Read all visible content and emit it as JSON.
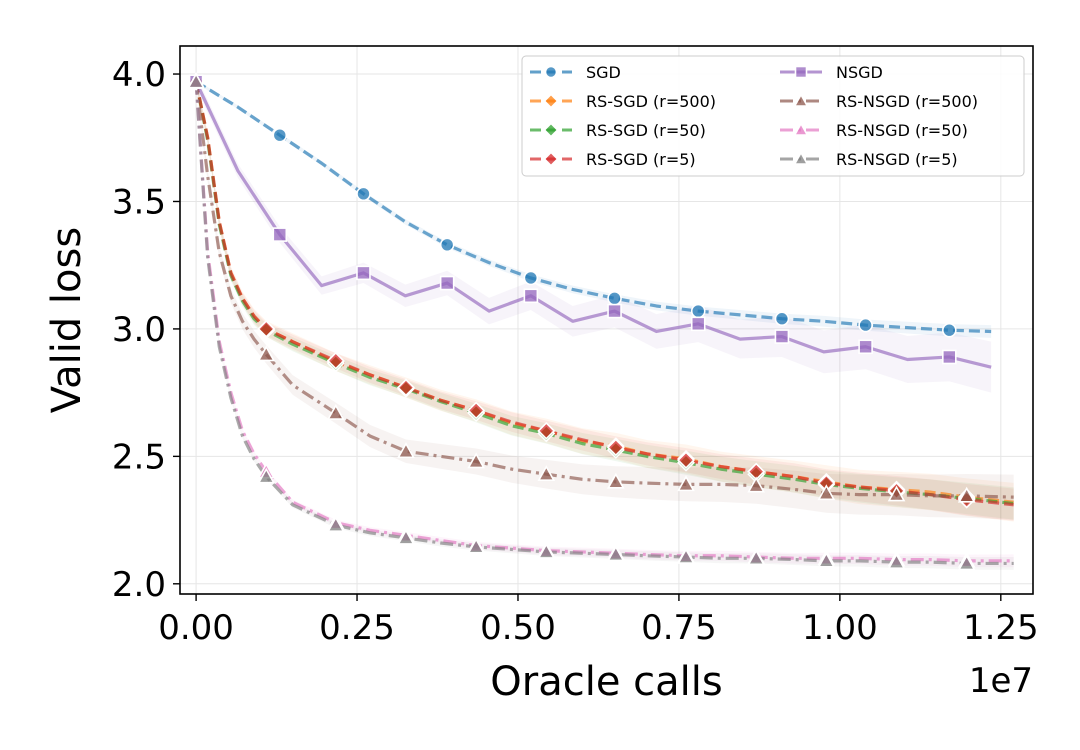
{
  "chart_data": {
    "type": "line",
    "xlabel": "Oracle calls",
    "ylabel": "Valid loss",
    "x_offset_label": "1e7",
    "xlim": [
      -0.025,
      1.3
    ],
    "ylim": [
      1.96,
      4.11
    ],
    "xticks": [
      0.0,
      0.25,
      0.5,
      0.75,
      1.0,
      1.25
    ],
    "xtick_labels": [
      "0.00",
      "0.25",
      "0.50",
      "0.75",
      "1.00",
      "1.25"
    ],
    "yticks": [
      2.0,
      2.5,
      3.0,
      3.5,
      4.0
    ],
    "ytick_labels": [
      "2.0",
      "2.5",
      "3.0",
      "3.5",
      "4.0"
    ],
    "grid": true,
    "legend_location": "upper right",
    "series": [
      {
        "name": "SGD",
        "color": "#1f77b4",
        "marker": "circle",
        "linestyle": "dashed",
        "band": 0.02,
        "x": [
          0.0,
          0.065,
          0.13,
          0.195,
          0.26,
          0.325,
          0.39,
          0.455,
          0.52,
          0.585,
          0.65,
          0.715,
          0.78,
          0.845,
          0.91,
          0.975,
          1.04,
          1.105,
          1.17,
          1.235
        ],
        "y": [
          3.97,
          3.87,
          3.76,
          3.65,
          3.53,
          3.42,
          3.33,
          3.26,
          3.2,
          3.155,
          3.12,
          3.09,
          3.07,
          3.055,
          3.04,
          3.03,
          3.015,
          3.005,
          2.995,
          2.99
        ],
        "marker_indices": [
          0,
          2,
          4,
          6,
          8,
          10,
          12,
          14,
          16,
          18
        ]
      },
      {
        "name": "RS-SGD (r=500)",
        "color": "#ff7f0e",
        "marker": "diamond",
        "linestyle": "dashed",
        "band": 0.06,
        "x": [
          0.0,
          0.018,
          0.036,
          0.054,
          0.072,
          0.09,
          0.109,
          0.15,
          0.217,
          0.27,
          0.326,
          0.38,
          0.435,
          0.49,
          0.544,
          0.6,
          0.652,
          0.7,
          0.761,
          0.815,
          0.87,
          0.93,
          0.979,
          1.03,
          1.088,
          1.14,
          1.197,
          1.27
        ],
        "y": [
          3.97,
          3.75,
          3.42,
          3.22,
          3.12,
          3.05,
          3.0,
          2.95,
          2.87,
          2.82,
          2.77,
          2.72,
          2.68,
          2.63,
          2.6,
          2.56,
          2.54,
          2.51,
          2.49,
          2.46,
          2.44,
          2.42,
          2.4,
          2.38,
          2.37,
          2.36,
          2.34,
          2.32
        ],
        "marker_indices": [
          0,
          6,
          8,
          10,
          12,
          14,
          16,
          18,
          20,
          22,
          24,
          26
        ]
      },
      {
        "name": "RS-SGD (r=50)",
        "color": "#2ca02c",
        "marker": "diamond",
        "linestyle": "dashed",
        "band": 0.05,
        "x": [
          0.0,
          0.018,
          0.036,
          0.054,
          0.072,
          0.09,
          0.109,
          0.15,
          0.217,
          0.27,
          0.326,
          0.38,
          0.435,
          0.49,
          0.544,
          0.6,
          0.652,
          0.7,
          0.761,
          0.815,
          0.87,
          0.93,
          0.979,
          1.03,
          1.088,
          1.14,
          1.197,
          1.27
        ],
        "y": [
          3.97,
          3.74,
          3.41,
          3.21,
          3.11,
          3.04,
          2.995,
          2.94,
          2.865,
          2.81,
          2.765,
          2.715,
          2.67,
          2.62,
          2.59,
          2.55,
          2.525,
          2.5,
          2.475,
          2.45,
          2.43,
          2.41,
          2.39,
          2.375,
          2.36,
          2.35,
          2.335,
          2.315
        ],
        "marker_indices": [
          0,
          6,
          8,
          10,
          12,
          14,
          16,
          18,
          20,
          22,
          24,
          26
        ]
      },
      {
        "name": "RS-SGD (r=5)",
        "color": "#d62728",
        "marker": "diamond",
        "linestyle": "dashed",
        "band": 0.05,
        "x": [
          0.0,
          0.018,
          0.036,
          0.054,
          0.072,
          0.09,
          0.109,
          0.15,
          0.217,
          0.27,
          0.326,
          0.38,
          0.435,
          0.49,
          0.544,
          0.6,
          0.652,
          0.7,
          0.761,
          0.815,
          0.87,
          0.93,
          0.979,
          1.03,
          1.088,
          1.14,
          1.197,
          1.27
        ],
        "y": [
          3.97,
          3.75,
          3.42,
          3.22,
          3.12,
          3.05,
          3.0,
          2.95,
          2.875,
          2.82,
          2.77,
          2.72,
          2.68,
          2.635,
          2.6,
          2.565,
          2.535,
          2.51,
          2.485,
          2.46,
          2.44,
          2.42,
          2.395,
          2.38,
          2.365,
          2.35,
          2.33,
          2.31
        ],
        "marker_indices": [
          0,
          6,
          8,
          10,
          12,
          14,
          16,
          18,
          20,
          22,
          24,
          26
        ]
      },
      {
        "name": "NSGD",
        "color": "#9467bd",
        "marker": "square",
        "linestyle": "solid",
        "band": 0.08,
        "x": [
          0.0,
          0.065,
          0.13,
          0.195,
          0.26,
          0.325,
          0.39,
          0.455,
          0.52,
          0.585,
          0.65,
          0.715,
          0.78,
          0.845,
          0.91,
          0.975,
          1.04,
          1.105,
          1.17,
          1.235
        ],
        "y": [
          3.97,
          3.62,
          3.37,
          3.17,
          3.22,
          3.13,
          3.18,
          3.07,
          3.13,
          3.03,
          3.07,
          2.99,
          3.02,
          2.96,
          2.97,
          2.91,
          2.93,
          2.88,
          2.89,
          2.85
        ],
        "marker_indices": [
          0,
          2,
          4,
          6,
          8,
          10,
          12,
          14,
          16,
          18
        ]
      },
      {
        "name": "RS-NSGD (r=500)",
        "color": "#8c564b",
        "marker": "triangle",
        "linestyle": "dashdot",
        "band": 0.07,
        "x": [
          0.0,
          0.018,
          0.036,
          0.054,
          0.072,
          0.09,
          0.109,
          0.15,
          0.217,
          0.27,
          0.326,
          0.38,
          0.435,
          0.49,
          0.544,
          0.6,
          0.652,
          0.7,
          0.761,
          0.815,
          0.87,
          0.93,
          0.979,
          1.03,
          1.088,
          1.14,
          1.197,
          1.27
        ],
        "y": [
          3.97,
          3.6,
          3.3,
          3.13,
          3.03,
          2.96,
          2.9,
          2.78,
          2.67,
          2.58,
          2.52,
          2.5,
          2.48,
          2.45,
          2.43,
          2.41,
          2.4,
          2.395,
          2.39,
          2.39,
          2.385,
          2.37,
          2.355,
          2.35,
          2.35,
          2.345,
          2.345,
          2.34
        ],
        "marker_indices": [
          0,
          6,
          8,
          10,
          12,
          14,
          16,
          18,
          20,
          22,
          24,
          26
        ]
      },
      {
        "name": "RS-NSGD (r=50)",
        "color": "#e377c2",
        "marker": "triangle",
        "linestyle": "dashdot",
        "band": 0.02,
        "x": [
          0.0,
          0.018,
          0.036,
          0.054,
          0.072,
          0.09,
          0.109,
          0.15,
          0.217,
          0.27,
          0.326,
          0.38,
          0.435,
          0.49,
          0.544,
          0.6,
          0.652,
          0.7,
          0.761,
          0.815,
          0.87,
          0.93,
          0.979,
          1.03,
          1.088,
          1.14,
          1.197,
          1.27
        ],
        "y": [
          3.97,
          3.3,
          2.95,
          2.75,
          2.6,
          2.51,
          2.44,
          2.32,
          2.24,
          2.21,
          2.19,
          2.17,
          2.15,
          2.14,
          2.13,
          2.125,
          2.12,
          2.115,
          2.11,
          2.11,
          2.105,
          2.1,
          2.1,
          2.1,
          2.095,
          2.095,
          2.09,
          2.09
        ],
        "marker_indices": [
          0,
          6,
          8,
          10,
          12,
          14,
          16,
          18,
          20,
          22,
          24,
          26
        ]
      },
      {
        "name": "RS-NSGD (r=5)",
        "color": "#7f7f7f",
        "marker": "triangle",
        "linestyle": "dashdot",
        "band": 0.02,
        "x": [
          0.0,
          0.018,
          0.036,
          0.054,
          0.072,
          0.09,
          0.109,
          0.15,
          0.217,
          0.27,
          0.326,
          0.38,
          0.435,
          0.49,
          0.544,
          0.6,
          0.652,
          0.7,
          0.761,
          0.815,
          0.87,
          0.93,
          0.979,
          1.03,
          1.088,
          1.14,
          1.197,
          1.27
        ],
        "y": [
          3.97,
          3.28,
          2.93,
          2.73,
          2.58,
          2.49,
          2.42,
          2.31,
          2.23,
          2.2,
          2.18,
          2.16,
          2.145,
          2.135,
          2.125,
          2.12,
          2.115,
          2.11,
          2.105,
          2.1,
          2.1,
          2.095,
          2.09,
          2.09,
          2.085,
          2.085,
          2.08,
          2.08
        ],
        "marker_indices": [
          0,
          6,
          8,
          10,
          12,
          14,
          16,
          18,
          20,
          22,
          24,
          26
        ]
      }
    ]
  }
}
